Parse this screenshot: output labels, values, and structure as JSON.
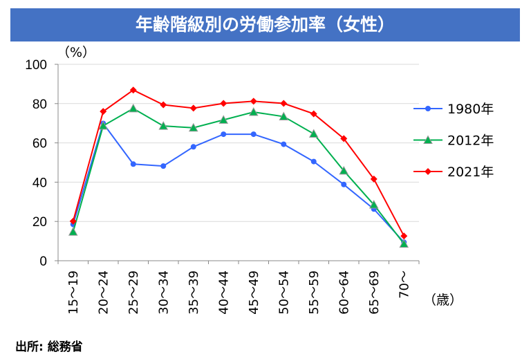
{
  "title": "年齢階級別の労働参加率（女性）",
  "source": "出所: 総務省",
  "chart_data": {
    "type": "line",
    "title": "年齢階級別の労働参加率（女性）",
    "ylabel": "（%）",
    "xlabel": "（歳）",
    "ylim": [
      0,
      100
    ],
    "yticks": [
      0,
      20,
      40,
      60,
      80,
      100
    ],
    "grid": true,
    "legend": "right",
    "categories": [
      "15～19",
      "20～24",
      "25～29",
      "30～34",
      "35～39",
      "40～44",
      "45～49",
      "50～54",
      "55～59",
      "60～64",
      "65～69",
      "70～"
    ],
    "series": [
      {
        "name": "1980年",
        "color": "#3366FF",
        "marker": "circle",
        "values": [
          18.5,
          69.9,
          49.2,
          48.2,
          58.0,
          64.4,
          64.4,
          59.3,
          50.5,
          38.8,
          26.3,
          9.4
        ]
      },
      {
        "name": "2012年",
        "color": "#00B050",
        "marker": "triangle",
        "values": [
          14.7,
          68.7,
          77.5,
          68.6,
          67.7,
          71.7,
          75.7,
          73.4,
          64.6,
          45.8,
          28.5,
          8.6
        ]
      },
      {
        "name": "2021年",
        "color": "#FF0000",
        "marker": "diamond",
        "values": [
          20.1,
          76.0,
          86.9,
          79.4,
          77.7,
          80.1,
          81.2,
          80.1,
          74.8,
          62.2,
          41.6,
          12.6
        ]
      }
    ]
  }
}
